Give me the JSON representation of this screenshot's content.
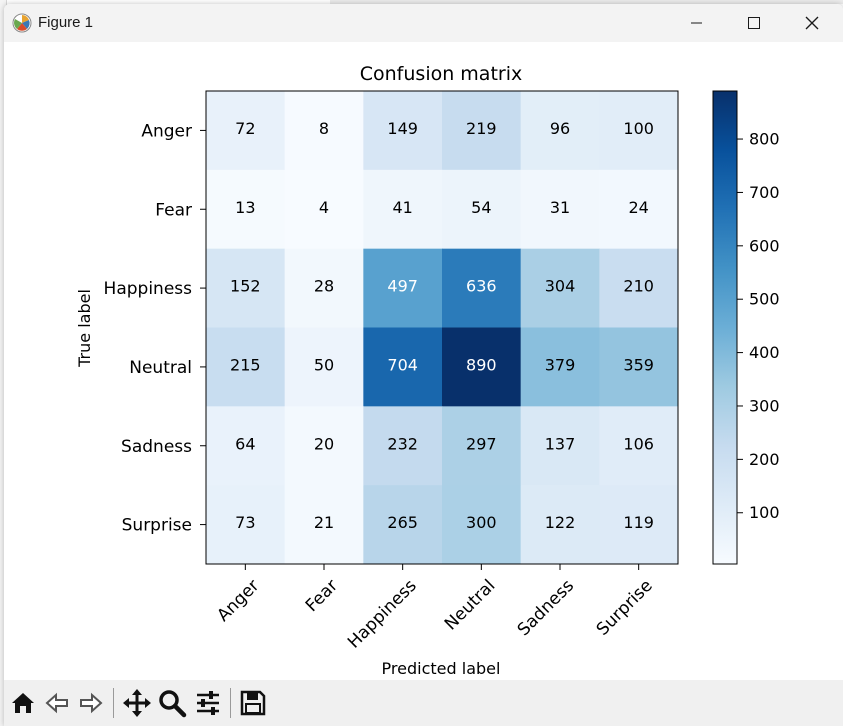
{
  "window": {
    "title": "Figure 1",
    "app_icon": "matplotlib-icon",
    "controls": [
      {
        "name": "minimize-icon"
      },
      {
        "name": "maximize-icon"
      },
      {
        "name": "close-icon"
      }
    ]
  },
  "toolbar": {
    "tools": [
      {
        "name": "home-icon",
        "label": "Home"
      },
      {
        "name": "back-icon",
        "label": "Back"
      },
      {
        "name": "forward-icon",
        "label": "Forward"
      },
      {
        "name": "pan-icon",
        "label": "Pan"
      },
      {
        "name": "zoom-icon",
        "label": "Zoom"
      },
      {
        "name": "configure-subplots-icon",
        "label": "Configure subplots"
      },
      {
        "name": "save-icon",
        "label": "Save"
      }
    ]
  },
  "colors": {
    "cmap_low": "#f7fbff",
    "cmap_high": "#08306b",
    "text_dark": "#000000",
    "text_light": "#ffffff"
  },
  "chart_data": {
    "type": "heatmap",
    "title": "Confusion matrix",
    "xlabel": "Predicted label",
    "ylabel": "True label",
    "x_categories": [
      "Anger",
      "Fear",
      "Happiness",
      "Neutral",
      "Sadness",
      "Surprise"
    ],
    "y_categories": [
      "Anger",
      "Fear",
      "Happiness",
      "Neutral",
      "Sadness",
      "Surprise"
    ],
    "values": [
      [
        72,
        8,
        149,
        219,
        96,
        100
      ],
      [
        13,
        4,
        41,
        54,
        31,
        24
      ],
      [
        152,
        28,
        497,
        636,
        304,
        210
      ],
      [
        215,
        50,
        704,
        890,
        379,
        359
      ],
      [
        64,
        20,
        232,
        297,
        137,
        106
      ],
      [
        73,
        21,
        265,
        300,
        122,
        119
      ]
    ],
    "colormap": "Blues",
    "vmin": 4,
    "vmax": 890,
    "colorbar_ticks": [
      100,
      200,
      300,
      400,
      500,
      600,
      700,
      800
    ],
    "x_tick_rotation": "45"
  }
}
